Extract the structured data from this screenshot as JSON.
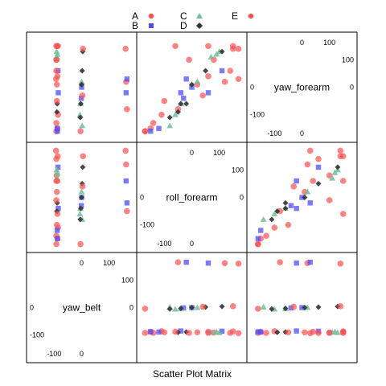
{
  "chart_data": {
    "type": "scatter",
    "title": "",
    "xlabel": "Scatter Plot Matrix",
    "variables": [
      "yaw_belt",
      "roll_forearm",
      "yaw_forearm"
    ],
    "diagonal_labels": [
      "yaw_belt",
      "roll_forearm",
      "yaw_forearm"
    ],
    "axis_ranges": {
      "yaw_belt": [
        -180,
        180
      ],
      "roll_forearm": [
        -180,
        180
      ],
      "yaw_forearm": [
        -180,
        180
      ]
    },
    "tick_labels": {
      "yaw_belt": [
        "-100",
        "0",
        "100"
      ],
      "roll_forearm": [
        "-100",
        "0",
        "100"
      ],
      "yaw_forearm": [
        "-100",
        "0",
        "100"
      ]
    },
    "grid": false,
    "legend": {
      "placement": "top",
      "entries": [
        {
          "name": "A",
          "color": "#ff4f4f",
          "shape": "circle"
        },
        {
          "name": "B",
          "color": "#4d4dff",
          "shape": "square"
        },
        {
          "name": "C",
          "color": "#6fbf9a",
          "shape": "triangle"
        },
        {
          "name": "D",
          "color": "#333333",
          "shape": "diamond"
        },
        {
          "name": "E",
          "color": "#ff4f4f",
          "shape": "circle"
        }
      ]
    },
    "series": [
      {
        "name": "A",
        "color": "#ff4f4f",
        "points": [
          [
            -92,
            -170,
            -160
          ],
          [
            -92,
            -140,
            -130
          ],
          [
            -90,
            20,
            10
          ],
          [
            -88,
            60,
            40
          ],
          [
            -87,
            150,
            150
          ],
          [
            -86,
            -110,
            -100
          ],
          [
            162,
            120,
            20
          ],
          [
            165,
            -50,
            -80
          ],
          [
            160,
            170,
            140
          ],
          [
            -88,
            -150,
            -150
          ],
          [
            -91,
            80,
            100
          ]
        ]
      },
      {
        "name": "B",
        "color": "#4d4dff",
        "points": [
          [
            -88,
            -150,
            -160
          ],
          [
            -89,
            -120,
            -150
          ],
          [
            -86,
            110,
            60
          ],
          [
            -85,
            -40,
            -20
          ],
          [
            0,
            0,
            0
          ],
          [
            -1,
            -30,
            -40
          ],
          [
            162,
            60,
            -20
          ],
          [
            165,
            -20,
            30
          ]
        ]
      },
      {
        "name": "C",
        "color": "#6fbf9a",
        "points": [
          [
            -90,
            70,
            110
          ],
          [
            -88,
            90,
            120
          ],
          [
            -6,
            -60,
            -100
          ],
          [
            -4,
            -40,
            -60
          ],
          [
            0,
            20,
            20
          ],
          [
            2,
            -80,
            -140
          ],
          [
            -91,
            100,
            130
          ]
        ]
      },
      {
        "name": "D",
        "color": "#333333",
        "points": [
          [
            -5,
            -80,
            -110
          ],
          [
            -3,
            -40,
            -60
          ],
          [
            0,
            0,
            10
          ],
          [
            2,
            50,
            60
          ],
          [
            4,
            110,
            130
          ],
          [
            -90,
            -50,
            -90
          ],
          [
            -89,
            -20,
            -60
          ]
        ]
      },
      {
        "name": "E",
        "color": "#ff4f4f",
        "points": [
          [
            -92,
            -10,
            100
          ],
          [
            -92,
            60,
            150
          ],
          [
            -90,
            -100,
            -50
          ],
          [
            -92,
            140,
            60
          ],
          [
            -4,
            -170,
            -160
          ],
          [
            3,
            40,
            -30
          ],
          [
            5,
            150,
            140
          ],
          [
            -93,
            170,
            30
          ],
          [
            -88,
            -60,
            150
          ]
        ]
      }
    ]
  }
}
